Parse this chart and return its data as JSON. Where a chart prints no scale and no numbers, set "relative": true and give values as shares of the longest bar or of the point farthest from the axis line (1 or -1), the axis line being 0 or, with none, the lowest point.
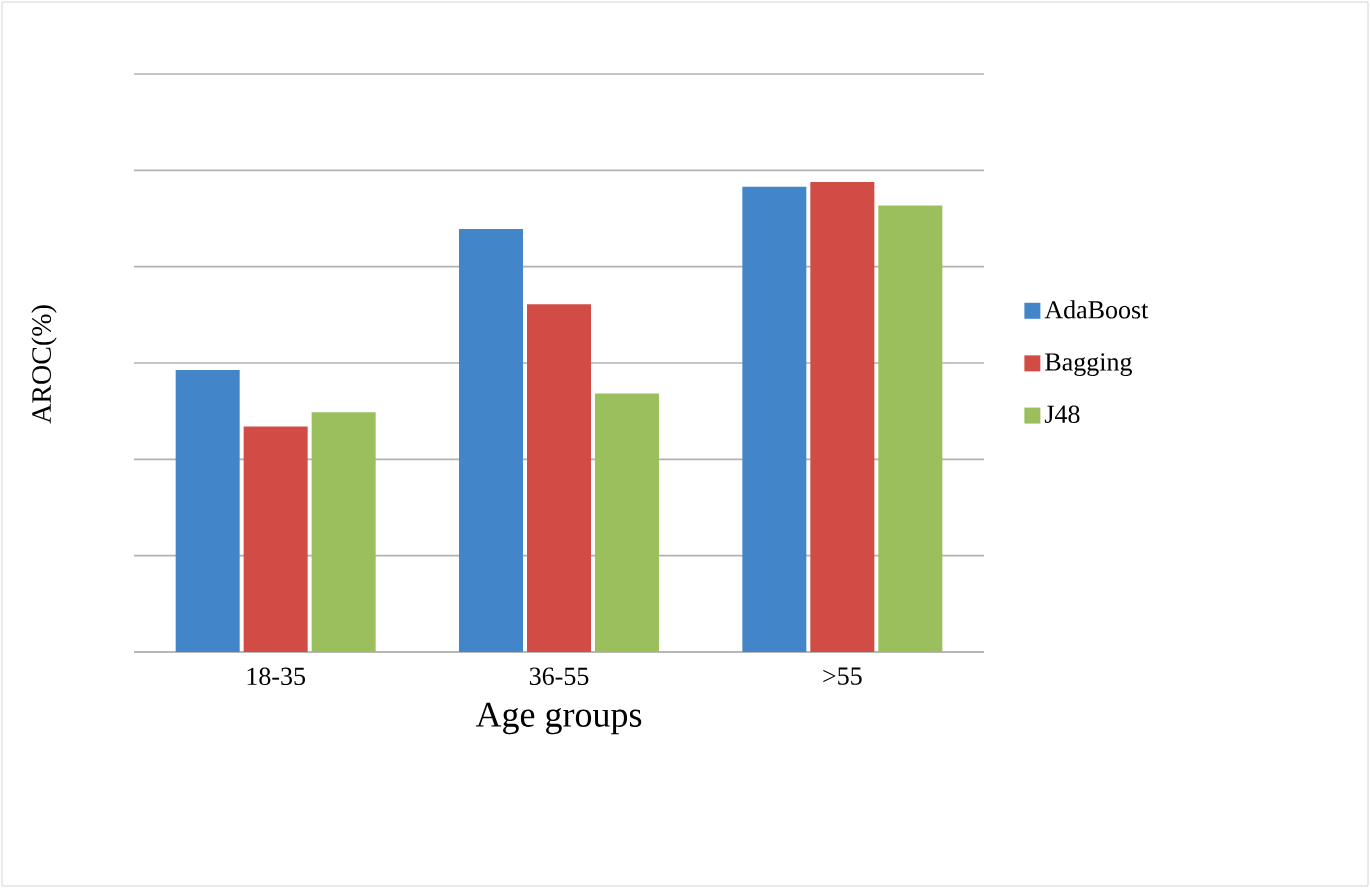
{
  "chart_data": {
    "type": "bar",
    "relative": true,
    "xlabel": "Age groups",
    "ylabel": "AROC(%)",
    "categories": [
      "18-35",
      "36-55",
      ">55"
    ],
    "series": [
      {
        "name": "AdaBoost",
        "color": "#4285c8",
        "values": [
          0.6,
          0.9,
          0.99
        ]
      },
      {
        "name": "Bagging",
        "color": "#d04c45",
        "values": [
          0.48,
          0.74,
          1.0
        ]
      },
      {
        "name": "J48",
        "color": "#9abf5c",
        "values": [
          0.51,
          0.55,
          0.95
        ]
      }
    ],
    "grid": "y",
    "legend": "right"
  }
}
